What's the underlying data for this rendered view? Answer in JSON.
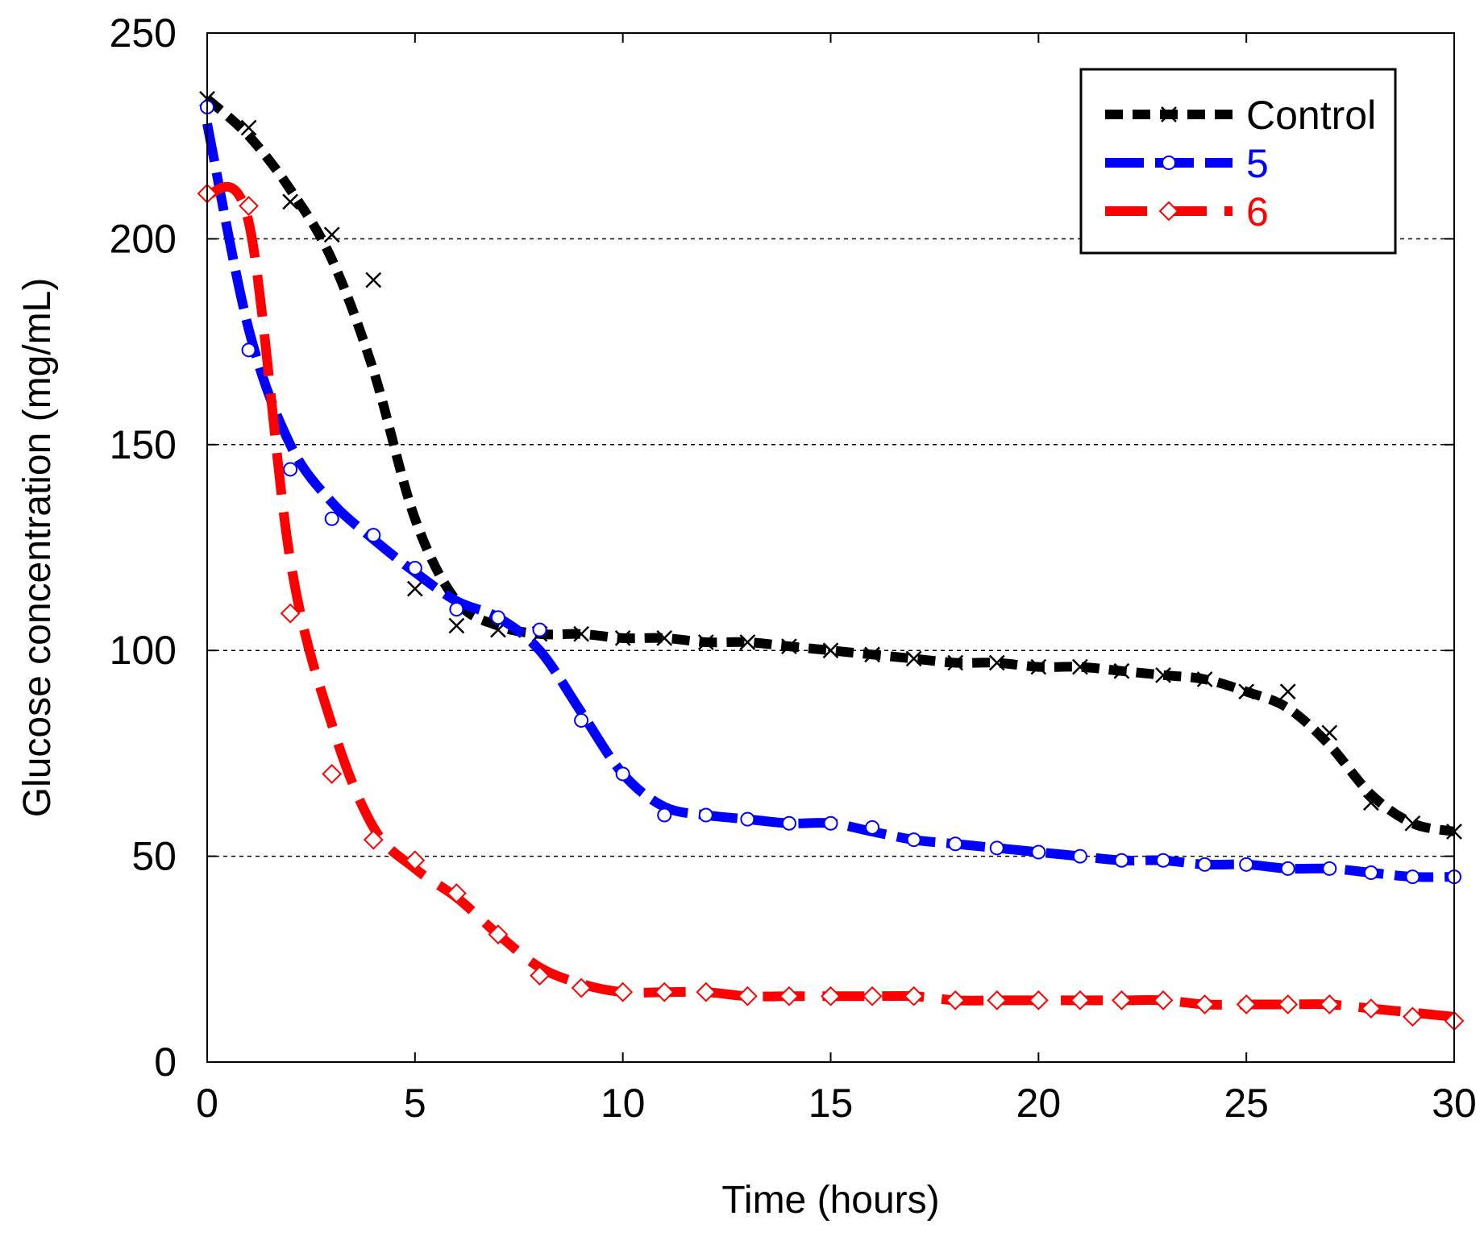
{
  "chart_data": {
    "type": "line",
    "title": "",
    "xlabel": "Time (hours)",
    "ylabel": "Glucose concentration (mg/mL)",
    "xlim": [
      0,
      30
    ],
    "ylim": [
      0,
      250
    ],
    "xticks": [
      0,
      5,
      10,
      15,
      20,
      25,
      30
    ],
    "yticks": [
      0,
      50,
      100,
      150,
      200,
      250
    ],
    "grid": "horizontal dotted",
    "legend_position": "top-right",
    "series": [
      {
        "name": "Control",
        "color": "#000000",
        "marker": "x",
        "dash": "dotted",
        "x": [
          0,
          1,
          2,
          3,
          4,
          5,
          6,
          7,
          8,
          9,
          10,
          11,
          12,
          13,
          14,
          15,
          16,
          17,
          18,
          19,
          20,
          21,
          22,
          23,
          24,
          25,
          26,
          27,
          28,
          29,
          30
        ],
        "y": [
          234,
          227,
          209,
          201,
          190,
          115,
          106,
          105,
          104,
          104,
          103,
          103,
          102,
          102,
          101,
          100,
          99,
          98,
          97,
          97,
          96,
          96,
          95,
          94,
          93,
          90,
          90,
          80,
          63,
          58,
          56
        ],
        "curve_y": [
          234,
          225,
          212,
          195,
          168,
          132,
          112,
          106,
          104,
          104,
          103,
          103,
          102,
          102,
          101,
          100,
          99,
          98,
          97,
          97,
          96,
          96,
          95,
          94,
          93,
          90,
          86,
          77,
          65,
          58,
          56
        ]
      },
      {
        "name": "5",
        "color": "#0000ff",
        "marker": "circle",
        "dash": "dashed",
        "x": [
          0,
          1,
          2,
          3,
          4,
          5,
          6,
          7,
          8,
          9,
          10,
          11,
          12,
          13,
          14,
          15,
          16,
          17,
          18,
          19,
          20,
          21,
          22,
          23,
          24,
          25,
          26,
          27,
          28,
          29,
          30
        ],
        "y": [
          232,
          173,
          144,
          132,
          128,
          120,
          110,
          108,
          105,
          83,
          70,
          60,
          60,
          59,
          58,
          58,
          57,
          54,
          53,
          52,
          51,
          50,
          49,
          49,
          48,
          48,
          47,
          47,
          46,
          45,
          45
        ],
        "curve_y": [
          228,
          178,
          150,
          136,
          127,
          119,
          112,
          108,
          100,
          85,
          70,
          62,
          60,
          59,
          58,
          58,
          56,
          54,
          53,
          52,
          51,
          50,
          49,
          49,
          48,
          48,
          47,
          47,
          46,
          45,
          45
        ]
      },
      {
        "name": "6",
        "color": "#ff0000",
        "marker": "diamond",
        "dash": "long-dashed",
        "x": [
          0,
          1,
          2,
          3,
          4,
          5,
          6,
          7,
          8,
          9,
          10,
          11,
          12,
          13,
          14,
          15,
          16,
          17,
          18,
          19,
          20,
          21,
          22,
          23,
          24,
          25,
          26,
          27,
          28,
          29,
          30
        ],
        "y": [
          211,
          208,
          109,
          70,
          54,
          49,
          41,
          31,
          21,
          18,
          17,
          17,
          17,
          16,
          16,
          16,
          16,
          16,
          15,
          15,
          15,
          15,
          15,
          15,
          14,
          14,
          14,
          14,
          13,
          11,
          10
        ],
        "curve_y": [
          211,
          204,
          122,
          82,
          57,
          47,
          40,
          31,
          23,
          19,
          17,
          17,
          17,
          16,
          16,
          16,
          16,
          16,
          15,
          15,
          15,
          15,
          15,
          15,
          14,
          14,
          14,
          14,
          13,
          12,
          11
        ]
      }
    ]
  }
}
